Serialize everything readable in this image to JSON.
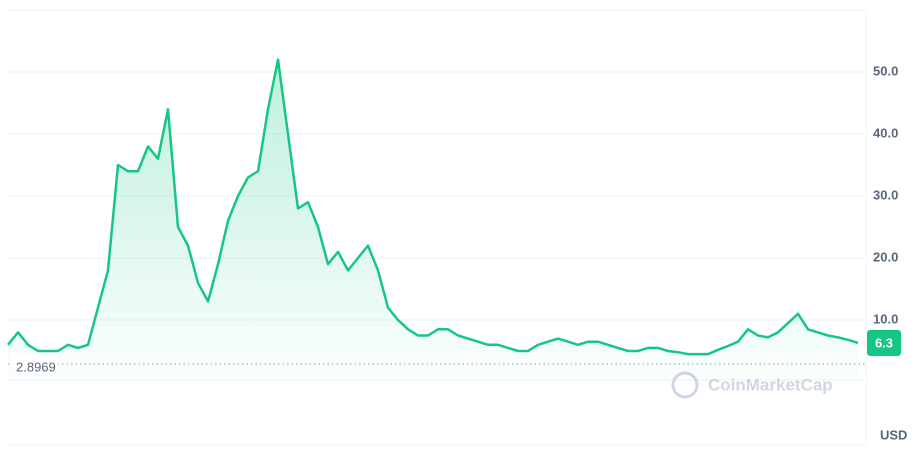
{
  "chart_data": {
    "type": "line",
    "color": "#16c784",
    "values": [
      6,
      8,
      6,
      5,
      5,
      5,
      6,
      5.5,
      6,
      12,
      18,
      35,
      34,
      34,
      38,
      36,
      44,
      25,
      22,
      16,
      13,
      19,
      26,
      30,
      33,
      34,
      44,
      52,
      40,
      28,
      29,
      25,
      19,
      21,
      18,
      20,
      22,
      18,
      12,
      10,
      8.5,
      7.5,
      7.5,
      8.5,
      8.5,
      7.5,
      7,
      6.5,
      6,
      6,
      5.5,
      5,
      5,
      6,
      6.5,
      7,
      6.5,
      6,
      6.5,
      6.5,
      6,
      5.5,
      5,
      5,
      5.5,
      5.5,
      5,
      4.8,
      4.5,
      4.5,
      4.5,
      5.2,
      5.8,
      6.5,
      8.5,
      7.5,
      7.2,
      8,
      9.5,
      11,
      8.5,
      8,
      7.5,
      7.2,
      6.8,
      6.3
    ],
    "ylim": [
      0,
      60
    ],
    "yticks": [
      {
        "value": 10,
        "label": "10.0"
      },
      {
        "value": 20,
        "label": "20.0"
      },
      {
        "value": 30,
        "label": "30.0"
      },
      {
        "value": 40,
        "label": "40.0"
      },
      {
        "value": 50,
        "label": "50.0"
      }
    ],
    "grid": true,
    "reference_line": 2.8969,
    "current_price": 6.3,
    "currency": "USD",
    "watermark": "CoinMarketCap"
  }
}
